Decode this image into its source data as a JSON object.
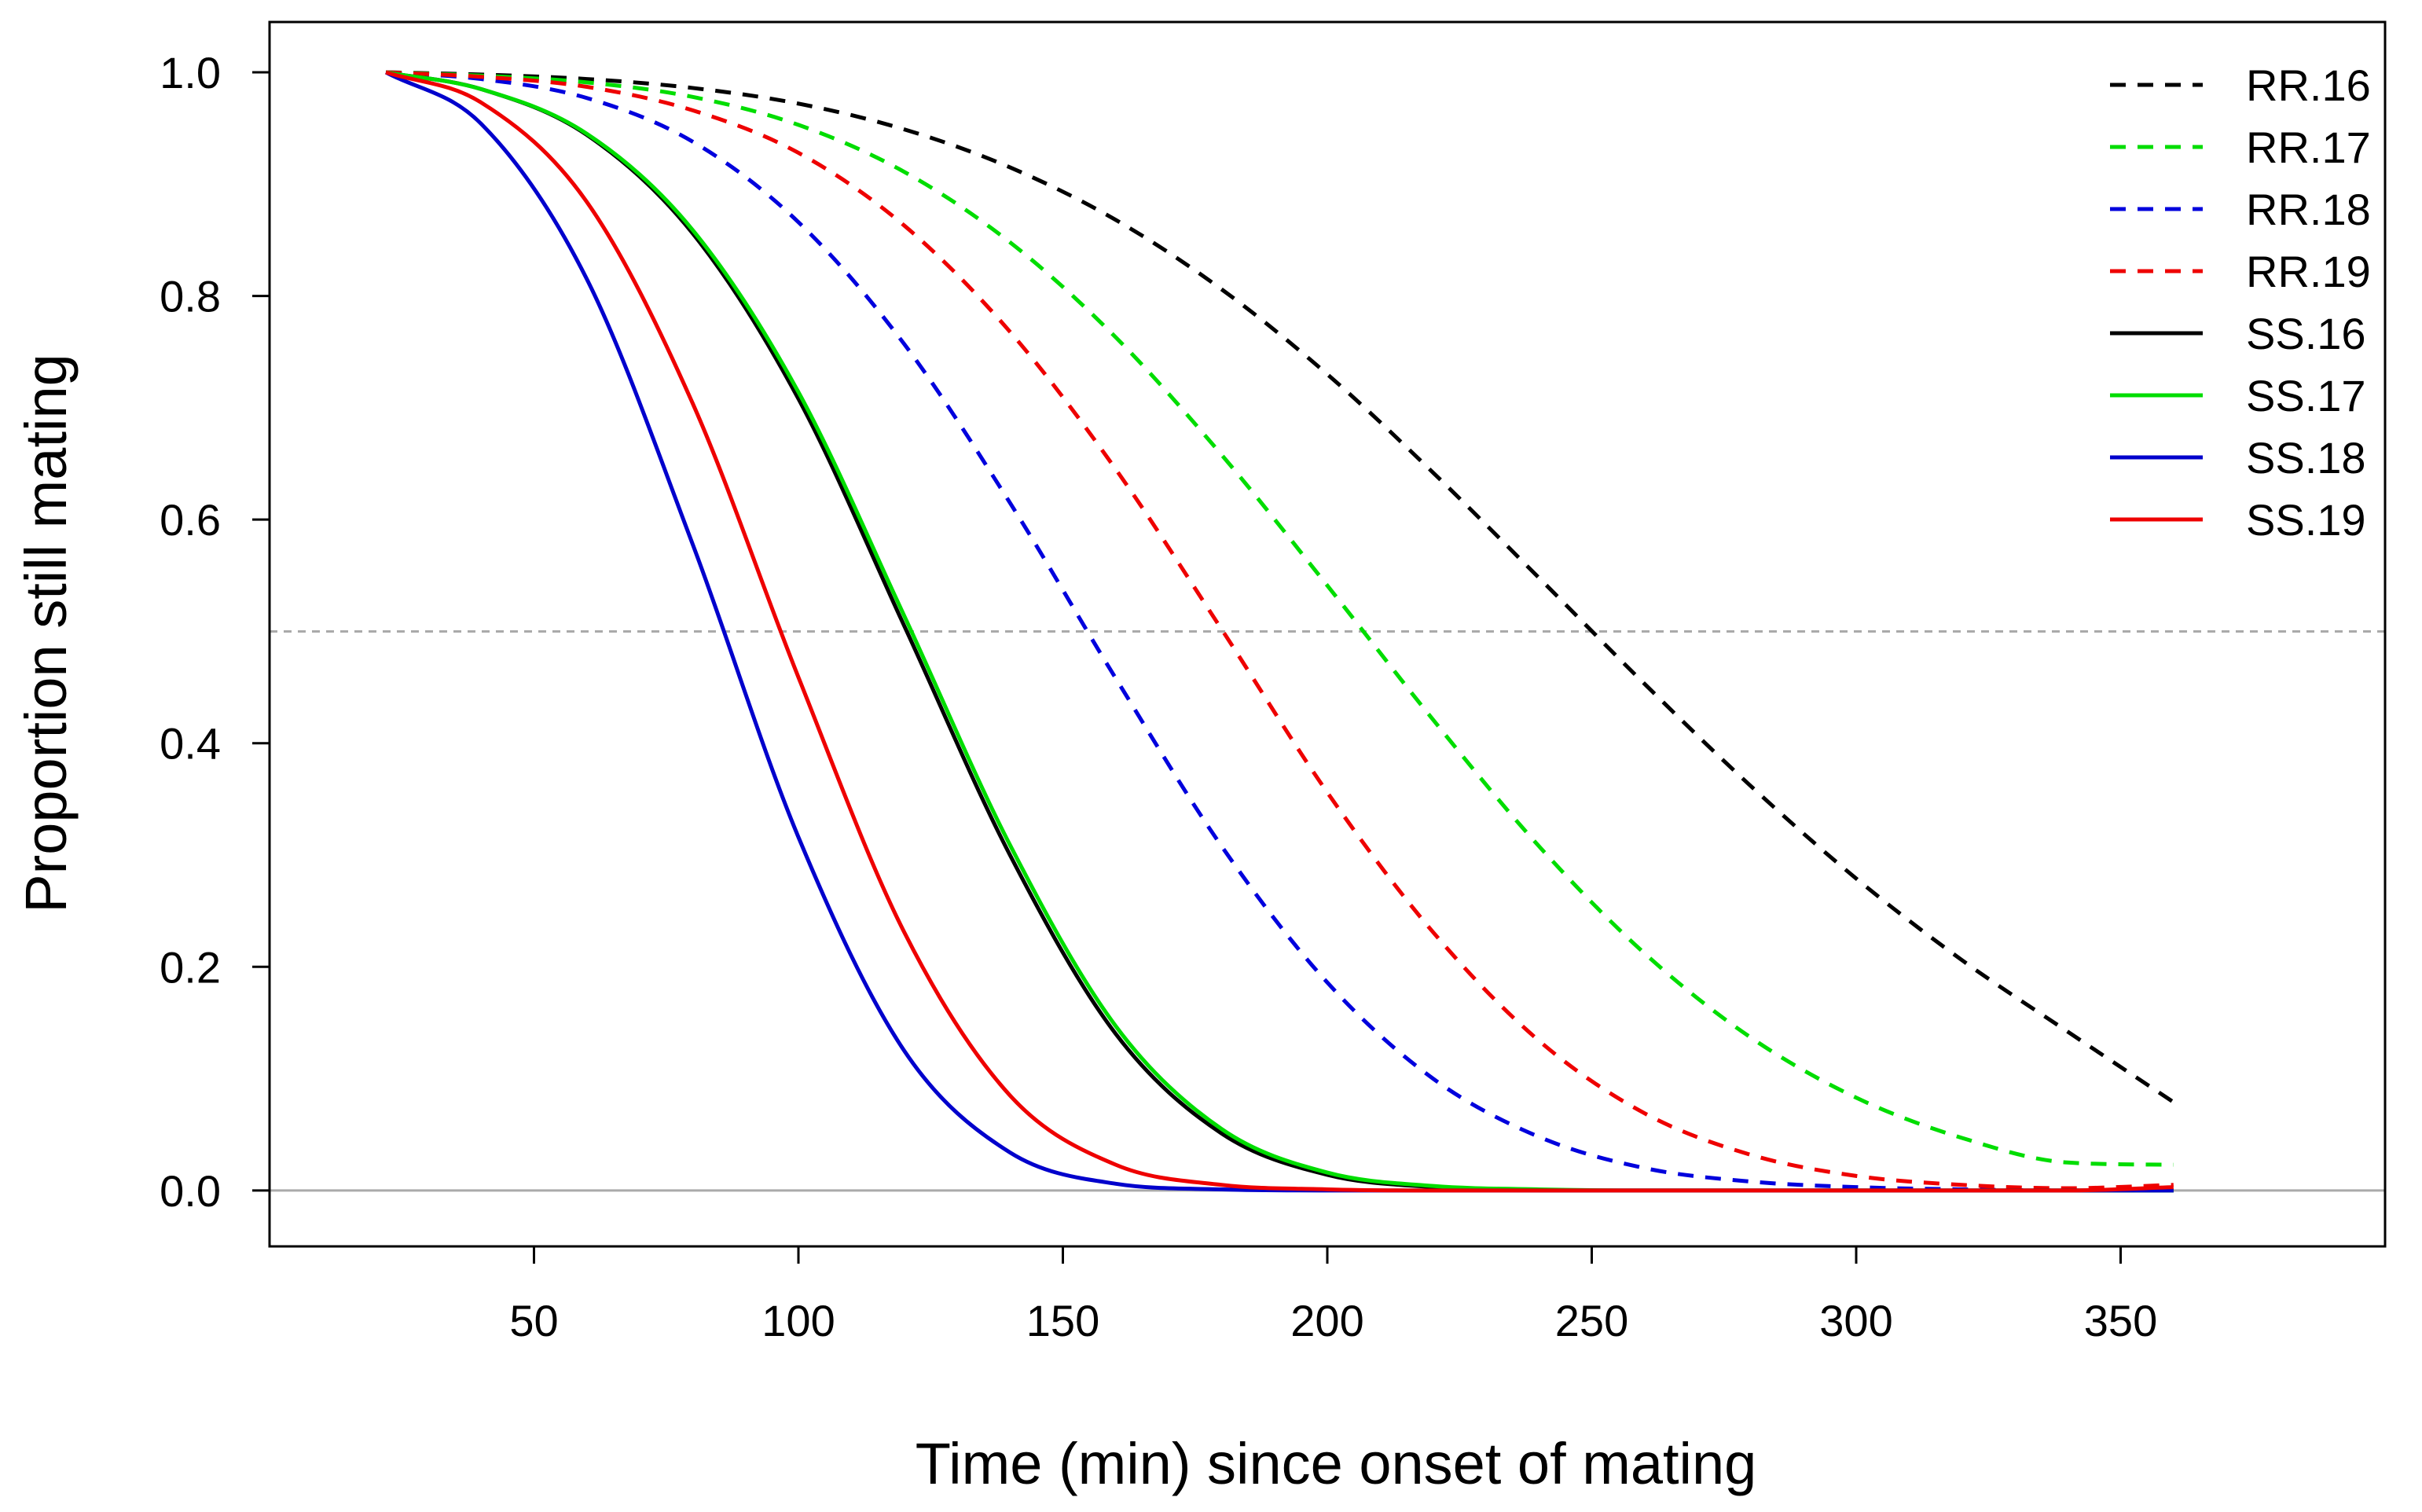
{
  "chart_data": {
    "type": "line",
    "title": "",
    "xlabel": "Time (min) since onset of mating",
    "ylabel": "Proportion still mating",
    "xlim": [
      0,
      400
    ],
    "ylim": [
      -0.05,
      1.045
    ],
    "xticks": [
      50,
      100,
      150,
      200,
      250,
      300,
      350
    ],
    "xtick_labels": [
      "50",
      "100",
      "150",
      "200",
      "250",
      "300",
      "350"
    ],
    "yticks": [
      0.0,
      0.2,
      0.4,
      0.6,
      0.8,
      1.0
    ],
    "ytick_labels": [
      "0.0",
      "0.2",
      "0.4",
      "0.6",
      "0.8",
      "1.0"
    ],
    "grid": false,
    "legend_position": "top-right",
    "reference_lines": [
      {
        "orientation": "horizontal",
        "y": 0.5,
        "style": "dashed",
        "color": "#aaaaaa"
      },
      {
        "orientation": "horizontal",
        "y": 0.0,
        "style": "solid",
        "color": "#aaaaaa"
      }
    ],
    "x": [
      22,
      40,
      60,
      80,
      100,
      120,
      140,
      160,
      180,
      200,
      220,
      240,
      260,
      280,
      300,
      320,
      340,
      360
    ],
    "series": [
      {
        "name": "RR.16",
        "color": "#000000",
        "linestyle": "dashed",
        "values": [
          1.0,
          0.998,
          0.994,
          0.986,
          0.972,
          0.949,
          0.915,
          0.868,
          0.806,
          0.73,
          0.642,
          0.548,
          0.453,
          0.362,
          0.279,
          0.206,
          0.142,
          0.079
        ]
      },
      {
        "name": "RR.17",
        "color": "#00dd00",
        "linestyle": "dashed",
        "values": [
          1.0,
          0.997,
          0.991,
          0.978,
          0.953,
          0.911,
          0.848,
          0.763,
          0.658,
          0.541,
          0.421,
          0.308,
          0.212,
          0.137,
          0.083,
          0.047,
          0.025,
          0.023
        ]
      },
      {
        "name": "RR.18",
        "color": "#0000dd",
        "linestyle": "dashed",
        "values": [
          1.0,
          0.994,
          0.977,
          0.938,
          0.866,
          0.757,
          0.615,
          0.458,
          0.308,
          0.186,
          0.1,
          0.048,
          0.02,
          0.008,
          0.003,
          0.001,
          0.0,
          0.0
        ]
      },
      {
        "name": "RR.19",
        "color": "#ee0000",
        "linestyle": "dashed",
        "values": [
          1.0,
          0.996,
          0.987,
          0.966,
          0.928,
          0.863,
          0.768,
          0.645,
          0.502,
          0.356,
          0.231,
          0.134,
          0.069,
          0.032,
          0.013,
          0.005,
          0.002,
          0.005
        ]
      },
      {
        "name": "SS.16",
        "color": "#000000",
        "linestyle": "solid",
        "values": [
          1.0,
          0.985,
          0.944,
          0.856,
          0.708,
          0.505,
          0.3,
          0.14,
          0.051,
          0.014,
          0.003,
          0.0,
          0.0,
          0.0,
          0.0,
          0.0,
          0.0,
          0.0
        ]
      },
      {
        "name": "SS.17",
        "color": "#00dd00",
        "linestyle": "solid",
        "values": [
          1.0,
          0.985,
          0.945,
          0.859,
          0.714,
          0.514,
          0.309,
          0.147,
          0.055,
          0.016,
          0.004,
          0.001,
          0.0,
          0.0,
          0.0,
          0.0,
          0.0,
          0.0
        ]
      },
      {
        "name": "SS.18",
        "color": "#0000cc",
        "linestyle": "solid",
        "values": [
          1.0,
          0.954,
          0.815,
          0.578,
          0.316,
          0.125,
          0.034,
          0.006,
          0.001,
          0.0,
          0.0,
          0.0,
          0.0,
          0.0,
          0.0,
          0.0,
          0.0,
          0.0
        ]
      },
      {
        "name": "SS.19",
        "color": "#ee0000",
        "linestyle": "solid",
        "values": [
          1.0,
          0.973,
          0.884,
          0.704,
          0.459,
          0.231,
          0.085,
          0.023,
          0.005,
          0.001,
          0.0,
          0.0,
          0.0,
          0.0,
          0.0,
          0.0,
          0.0,
          0.003
        ]
      }
    ]
  }
}
